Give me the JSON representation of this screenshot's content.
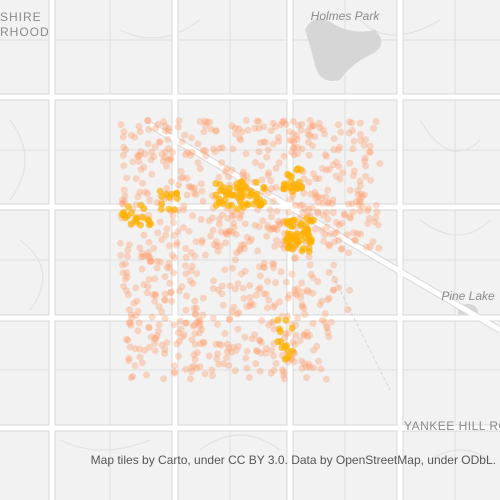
{
  "labels": {
    "neighborhood_line1": "SHIRE",
    "neighborhood_line2": "RHOOD",
    "park": "Holmes Park",
    "lake": "Pine Lake",
    "road": "YANKEE HILL ROA"
  },
  "attribution": "Map tiles by Carto, under CC BY 3.0. Data by OpenStreetMap, under ODbL."
}
